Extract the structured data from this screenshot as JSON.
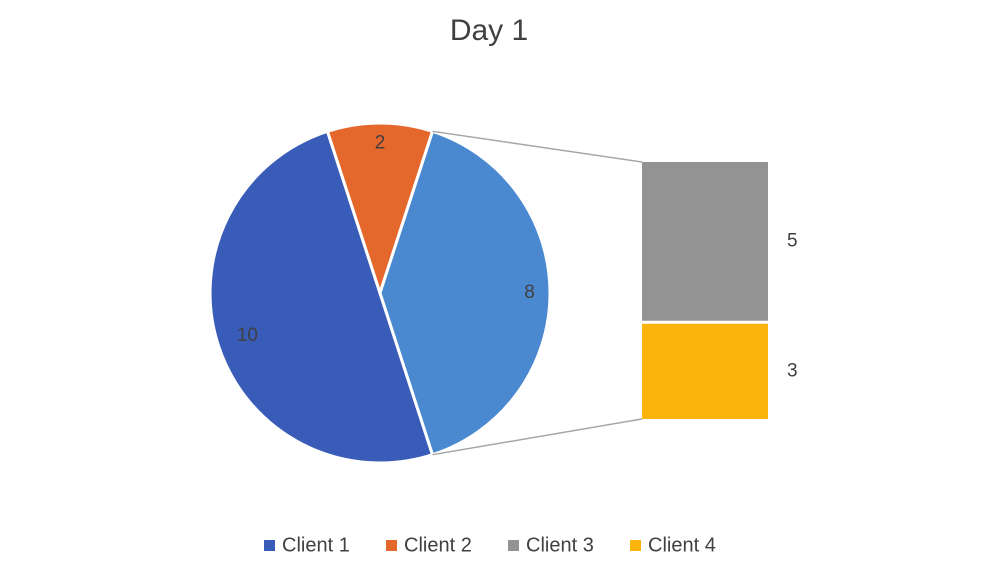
{
  "chart_data": {
    "type": "bar-of-pie",
    "title": "Day 1",
    "categories": [
      "Client 1",
      "Client 2",
      "Client 3",
      "Client 4"
    ],
    "values": [
      10,
      2,
      5,
      3
    ],
    "colors": [
      "#3a5cb9",
      "#e4672b",
      "#939393",
      "#fbb40c"
    ],
    "other": {
      "value": 8,
      "color": "#4a89cf"
    },
    "legend": "bottom"
  }
}
